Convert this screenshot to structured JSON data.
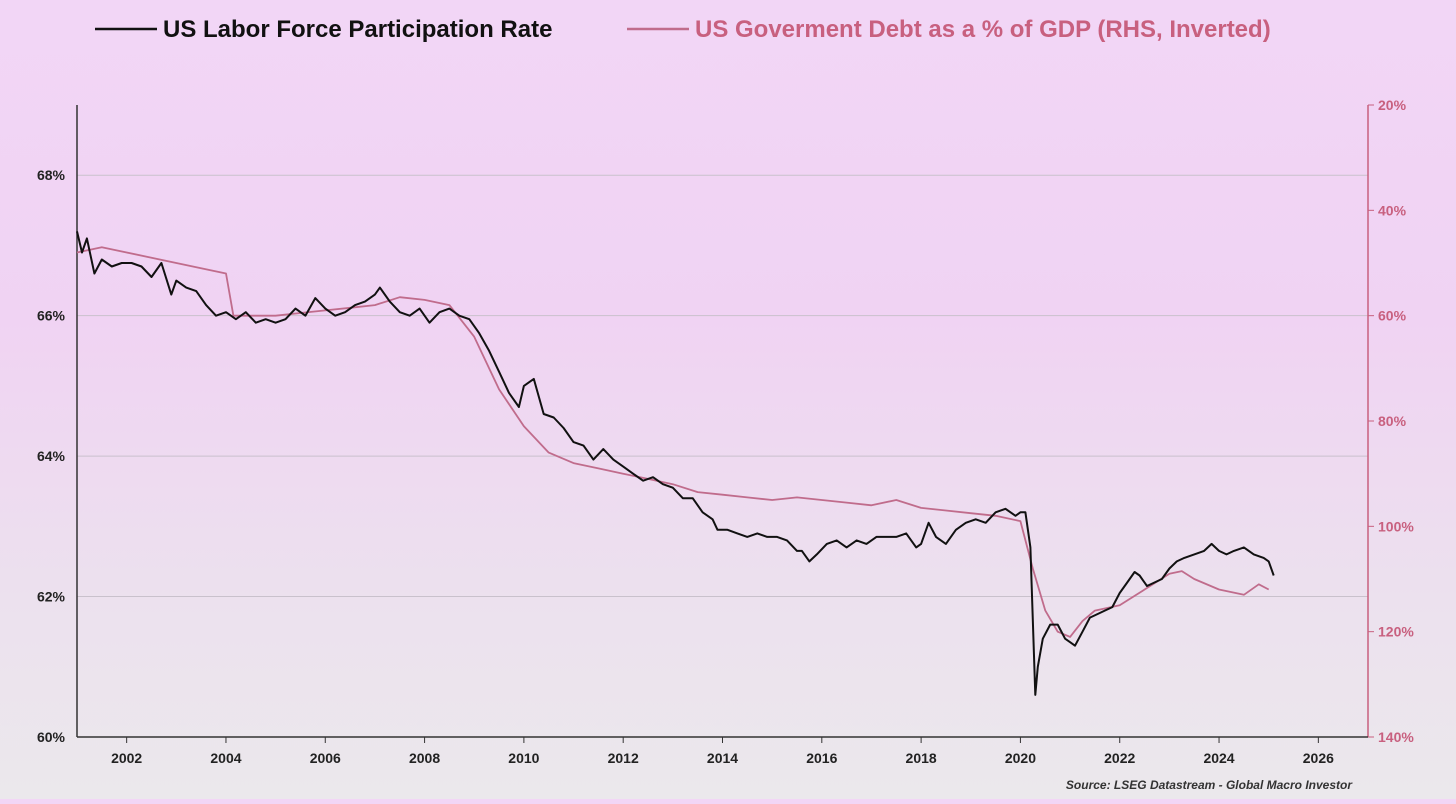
{
  "chart_data": {
    "type": "line",
    "title": "",
    "xlabel": "",
    "source": "Source: LSEG Datastream - Global Macro Investor",
    "x_range": [
      2001.0,
      2027.0
    ],
    "x_ticks": [
      "2002",
      "2004",
      "2006",
      "2008",
      "2010",
      "2012",
      "2014",
      "2016",
      "2018",
      "2020",
      "2022",
      "2024",
      "2026"
    ],
    "y_left": {
      "range": [
        60,
        69
      ],
      "ticks": [
        "60%",
        "62%",
        "64%",
        "66%",
        "68%"
      ],
      "grid": true
    },
    "y_right": {
      "range": [
        20,
        140
      ],
      "inverted": true,
      "ticks": [
        "20%",
        "40%",
        "60%",
        "80%",
        "100%",
        "120%",
        "140%"
      ]
    },
    "legend_placement": "top",
    "colors": {
      "lfpr": "#111111",
      "debt": "#c06c8c",
      "right_axis": "#c8607f",
      "grid": "#c9c1cc"
    },
    "series": [
      {
        "name": "US Labor Force Participation Rate",
        "axis": "left",
        "x": [
          2001.0,
          2001.1,
          2001.2,
          2001.35,
          2001.5,
          2001.7,
          2001.9,
          2002.1,
          2002.3,
          2002.5,
          2002.7,
          2002.9,
          2003.0,
          2003.2,
          2003.4,
          2003.6,
          2003.8,
          2004.0,
          2004.2,
          2004.4,
          2004.6,
          2004.8,
          2005.0,
          2005.2,
          2005.4,
          2005.6,
          2005.8,
          2006.0,
          2006.2,
          2006.4,
          2006.6,
          2006.8,
          2007.0,
          2007.1,
          2007.3,
          2007.5,
          2007.7,
          2007.9,
          2008.1,
          2008.3,
          2008.5,
          2008.7,
          2008.9,
          2009.1,
          2009.3,
          2009.5,
          2009.7,
          2009.9,
          2010.0,
          2010.2,
          2010.4,
          2010.6,
          2010.8,
          2011.0,
          2011.2,
          2011.4,
          2011.6,
          2011.8,
          2012.0,
          2012.2,
          2012.4,
          2012.6,
          2012.8,
          2013.0,
          2013.2,
          2013.4,
          2013.6,
          2013.8,
          2013.9,
          2014.1,
          2014.3,
          2014.5,
          2014.7,
          2014.9,
          2015.1,
          2015.3,
          2015.5,
          2015.6,
          2015.75,
          2015.9,
          2016.1,
          2016.3,
          2016.5,
          2016.7,
          2016.9,
          2017.1,
          2017.3,
          2017.5,
          2017.7,
          2017.9,
          2018.0,
          2018.15,
          2018.3,
          2018.5,
          2018.7,
          2018.9,
          2019.1,
          2019.3,
          2019.5,
          2019.7,
          2019.9,
          2020.0,
          2020.1,
          2020.2,
          2020.3,
          2020.35,
          2020.45,
          2020.6,
          2020.75,
          2020.9,
          2021.0,
          2021.1,
          2021.25,
          2021.4,
          2021.55,
          2021.7,
          2021.85,
          2022.0,
          2022.15,
          2022.3,
          2022.4,
          2022.55,
          2022.7,
          2022.85,
          2023.0,
          2023.15,
          2023.3,
          2023.5,
          2023.7,
          2023.85,
          2024.0,
          2024.15,
          2024.3,
          2024.5,
          2024.7,
          2024.9,
          2025.0,
          2025.1
        ],
        "values": [
          67.2,
          66.9,
          67.1,
          66.6,
          66.8,
          66.7,
          66.75,
          66.75,
          66.7,
          66.55,
          66.75,
          66.3,
          66.5,
          66.4,
          66.35,
          66.15,
          66.0,
          66.05,
          65.95,
          66.05,
          65.9,
          65.95,
          65.9,
          65.95,
          66.1,
          66.0,
          66.25,
          66.1,
          66.0,
          66.05,
          66.15,
          66.2,
          66.3,
          66.4,
          66.2,
          66.05,
          66.0,
          66.1,
          65.9,
          66.05,
          66.1,
          66.0,
          65.95,
          65.75,
          65.5,
          65.2,
          64.9,
          64.7,
          65.0,
          65.1,
          64.6,
          64.55,
          64.4,
          64.2,
          64.15,
          63.95,
          64.1,
          63.95,
          63.85,
          63.75,
          63.65,
          63.7,
          63.6,
          63.55,
          63.4,
          63.4,
          63.2,
          63.1,
          62.95,
          62.95,
          62.9,
          62.85,
          62.9,
          62.85,
          62.85,
          62.8,
          62.65,
          62.65,
          62.5,
          62.6,
          62.75,
          62.8,
          62.7,
          62.8,
          62.75,
          62.85,
          62.85,
          62.85,
          62.9,
          62.7,
          62.75,
          63.05,
          62.85,
          62.75,
          62.95,
          63.05,
          63.1,
          63.05,
          63.2,
          63.25,
          63.15,
          63.2,
          63.2,
          62.7,
          60.6,
          61.0,
          61.4,
          61.6,
          61.6,
          61.4,
          61.35,
          61.3,
          61.5,
          61.7,
          61.75,
          61.8,
          61.85,
          62.05,
          62.2,
          62.35,
          62.3,
          62.15,
          62.2,
          62.25,
          62.4,
          62.5,
          62.55,
          62.6,
          62.65,
          62.75,
          62.65,
          62.6,
          62.65,
          62.7,
          62.6,
          62.55,
          62.5,
          62.3
        ]
      },
      {
        "name": "US Goverment Debt as a % of GDP (RHS, Inverted)",
        "axis": "right",
        "x": [
          2001.0,
          2001.5,
          2002.0,
          2002.5,
          2003.0,
          2003.5,
          2004.0,
          2004.15,
          2004.5,
          2005.0,
          2005.5,
          2006.0,
          2006.5,
          2007.0,
          2007.5,
          2008.0,
          2008.5,
          2009.0,
          2009.5,
          2010.0,
          2010.5,
          2011.0,
          2011.5,
          2012.0,
          2012.5,
          2013.0,
          2013.5,
          2014.0,
          2014.5,
          2015.0,
          2015.5,
          2016.0,
          2016.5,
          2017.0,
          2017.5,
          2018.0,
          2018.5,
          2019.0,
          2019.5,
          2020.0,
          2020.25,
          2020.5,
          2020.75,
          2021.0,
          2021.25,
          2021.5,
          2022.0,
          2022.5,
          2023.0,
          2023.25,
          2023.5,
          2024.0,
          2024.5,
          2024.8,
          2025.0
        ],
        "values": [
          48,
          47,
          48,
          49,
          50,
          51,
          52,
          60,
          60,
          60,
          59.5,
          59,
          58.5,
          58,
          56.5,
          57,
          58,
          64,
          74,
          81,
          86,
          88,
          89,
          90,
          91,
          92,
          93.5,
          94,
          94.5,
          95,
          94.5,
          95,
          95.5,
          96,
          95,
          96.5,
          97,
          97.5,
          98,
          99,
          108,
          116,
          120,
          121,
          118,
          116,
          115,
          112,
          109,
          108.5,
          110,
          112,
          113,
          111,
          112
        ]
      }
    ]
  }
}
